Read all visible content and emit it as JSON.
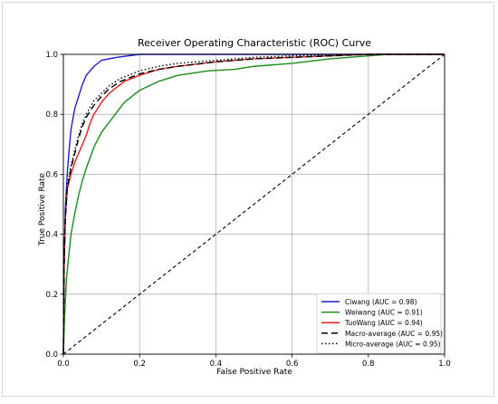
{
  "chart_data": {
    "type": "line",
    "title": "Receiver Operating Characteristic (ROC) Curve",
    "xlabel": "False Positive Rate",
    "ylabel": "True Positive Rate",
    "xlim": [
      0.0,
      1.0
    ],
    "ylim": [
      0.0,
      1.0
    ],
    "xticks": [
      "0.0",
      "0.2",
      "0.4",
      "0.6",
      "0.8",
      "1.0"
    ],
    "yticks": [
      "0.0",
      "0.2",
      "0.4",
      "0.6",
      "0.8",
      "1.0"
    ],
    "grid": true,
    "legend_position": "lower-right",
    "series": [
      {
        "name": "Ciwang (AUC = 0.98)",
        "color": "#1f1fcc",
        "dash": "solid",
        "points": [
          [
            0,
            0
          ],
          [
            0.002,
            0.3
          ],
          [
            0.005,
            0.48
          ],
          [
            0.01,
            0.6
          ],
          [
            0.015,
            0.68
          ],
          [
            0.02,
            0.75
          ],
          [
            0.03,
            0.82
          ],
          [
            0.04,
            0.86
          ],
          [
            0.05,
            0.9
          ],
          [
            0.06,
            0.93
          ],
          [
            0.08,
            0.96
          ],
          [
            0.1,
            0.98
          ],
          [
            0.14,
            0.99
          ],
          [
            0.2,
            1.0
          ],
          [
            1,
            1
          ]
        ]
      },
      {
        "name": "Weiwang (AUC = 0.91)",
        "color": "#1a8c1a",
        "dash": "solid",
        "points": [
          [
            0,
            0
          ],
          [
            0.003,
            0.12
          ],
          [
            0.008,
            0.25
          ],
          [
            0.015,
            0.34
          ],
          [
            0.02,
            0.4
          ],
          [
            0.03,
            0.47
          ],
          [
            0.04,
            0.53
          ],
          [
            0.05,
            0.58
          ],
          [
            0.06,
            0.62
          ],
          [
            0.08,
            0.69
          ],
          [
            0.1,
            0.74
          ],
          [
            0.13,
            0.79
          ],
          [
            0.16,
            0.84
          ],
          [
            0.2,
            0.88
          ],
          [
            0.25,
            0.91
          ],
          [
            0.3,
            0.93
          ],
          [
            0.38,
            0.945
          ],
          [
            0.45,
            0.95
          ],
          [
            0.5,
            0.96
          ],
          [
            0.6,
            0.97
          ],
          [
            0.7,
            0.985
          ],
          [
            0.8,
            0.995
          ],
          [
            0.85,
            1.0
          ],
          [
            1,
            1
          ]
        ]
      },
      {
        "name": "TuoWang (AUC = 0.94)",
        "color": "#e02020",
        "dash": "solid",
        "points": [
          [
            0,
            0
          ],
          [
            0.002,
            0.3
          ],
          [
            0.005,
            0.45
          ],
          [
            0.01,
            0.55
          ],
          [
            0.02,
            0.6
          ],
          [
            0.03,
            0.64
          ],
          [
            0.04,
            0.67
          ],
          [
            0.05,
            0.7
          ],
          [
            0.06,
            0.73
          ],
          [
            0.07,
            0.77
          ],
          [
            0.08,
            0.8
          ],
          [
            0.1,
            0.84
          ],
          [
            0.12,
            0.87
          ],
          [
            0.14,
            0.89
          ],
          [
            0.16,
            0.91
          ],
          [
            0.2,
            0.93
          ],
          [
            0.25,
            0.95
          ],
          [
            0.3,
            0.96
          ],
          [
            0.4,
            0.975
          ],
          [
            0.5,
            0.985
          ],
          [
            0.6,
            0.99
          ],
          [
            0.7,
            0.995
          ],
          [
            0.8,
            1.0
          ],
          [
            1,
            1
          ]
        ]
      },
      {
        "name": "Macro-average (AUC = 0.95)",
        "color": "#000000",
        "dash": "7,4",
        "points": [
          [
            0,
            0
          ],
          [
            0.002,
            0.3
          ],
          [
            0.005,
            0.45
          ],
          [
            0.01,
            0.55
          ],
          [
            0.02,
            0.62
          ],
          [
            0.03,
            0.67
          ],
          [
            0.04,
            0.72
          ],
          [
            0.05,
            0.76
          ],
          [
            0.06,
            0.79
          ],
          [
            0.08,
            0.83
          ],
          [
            0.1,
            0.86
          ],
          [
            0.12,
            0.885
          ],
          [
            0.15,
            0.91
          ],
          [
            0.2,
            0.935
          ],
          [
            0.25,
            0.95
          ],
          [
            0.3,
            0.96
          ],
          [
            0.4,
            0.975
          ],
          [
            0.5,
            0.985
          ],
          [
            0.6,
            0.99
          ],
          [
            0.7,
            0.995
          ],
          [
            0.8,
            1.0
          ],
          [
            1,
            1
          ]
        ]
      },
      {
        "name": "Micro-average (AUC = 0.95)",
        "color": "#000000",
        "dash": "1.5,2.5",
        "points": [
          [
            0,
            0
          ],
          [
            0.002,
            0.3
          ],
          [
            0.005,
            0.45
          ],
          [
            0.01,
            0.56
          ],
          [
            0.02,
            0.63
          ],
          [
            0.03,
            0.68
          ],
          [
            0.04,
            0.73
          ],
          [
            0.05,
            0.77
          ],
          [
            0.06,
            0.8
          ],
          [
            0.08,
            0.845
          ],
          [
            0.1,
            0.87
          ],
          [
            0.12,
            0.895
          ],
          [
            0.15,
            0.92
          ],
          [
            0.2,
            0.945
          ],
          [
            0.25,
            0.96
          ],
          [
            0.3,
            0.97
          ],
          [
            0.4,
            0.98
          ],
          [
            0.5,
            0.99
          ],
          [
            0.6,
            0.995
          ],
          [
            0.7,
            0.998
          ],
          [
            0.8,
            1.0
          ],
          [
            1,
            1
          ]
        ]
      }
    ],
    "reference_line": {
      "color": "#000000",
      "dash": "4,3",
      "points": [
        [
          0,
          0
        ],
        [
          1,
          1
        ]
      ]
    }
  }
}
